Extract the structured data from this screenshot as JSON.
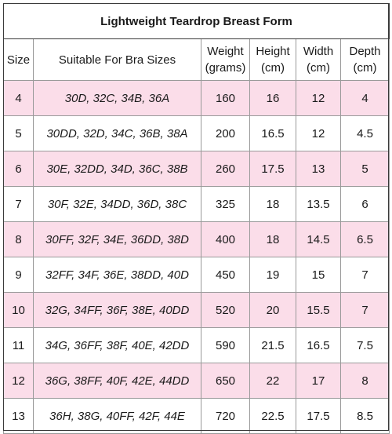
{
  "title": "Lightweight Teardrop Breast Form",
  "columns": {
    "size": [
      "Size"
    ],
    "bra": [
      "Suitable For Bra Sizes"
    ],
    "weight": [
      "Weight",
      "(grams)"
    ],
    "height": [
      "Height",
      "(cm)"
    ],
    "width": [
      "Width",
      "(cm)"
    ],
    "depth": [
      "Depth",
      "(cm)"
    ]
  },
  "rows": [
    {
      "size": "4",
      "bra": "30D, 32C, 34B, 36A",
      "weight": "160",
      "height": "16",
      "width": "12",
      "depth": "4"
    },
    {
      "size": "5",
      "bra": "30DD, 32D, 34C, 36B, 38A",
      "weight": "200",
      "height": "16.5",
      "width": "12",
      "depth": "4.5"
    },
    {
      "size": "6",
      "bra": "30E, 32DD, 34D, 36C, 38B",
      "weight": "260",
      "height": "17.5",
      "width": "13",
      "depth": "5"
    },
    {
      "size": "7",
      "bra": "30F, 32E, 34DD, 36D, 38C",
      "weight": "325",
      "height": "18",
      "width": "13.5",
      "depth": "6"
    },
    {
      "size": "8",
      "bra": "30FF, 32F, 34E, 36DD, 38D",
      "weight": "400",
      "height": "18",
      "width": "14.5",
      "depth": "6.5"
    },
    {
      "size": "9",
      "bra": "32FF, 34F, 36E, 38DD, 40D",
      "weight": "450",
      "height": "19",
      "width": "15",
      "depth": "7"
    },
    {
      "size": "10",
      "bra": "32G, 34FF, 36F, 38E, 40DD",
      "weight": "520",
      "height": "20",
      "width": "15.5",
      "depth": "7"
    },
    {
      "size": "11",
      "bra": "34G, 36FF, 38F, 40E, 42DD",
      "weight": "590",
      "height": "21.5",
      "width": "16.5",
      "depth": "7.5"
    },
    {
      "size": "12",
      "bra": "36G, 38FF, 40F, 42E, 44DD",
      "weight": "650",
      "height": "22",
      "width": "17",
      "depth": "8"
    },
    {
      "size": "13",
      "bra": "36H, 38G, 40FF, 42F, 44E",
      "weight": "720",
      "height": "22.5",
      "width": "17.5",
      "depth": "8.5"
    }
  ],
  "colors": {
    "shade": "#fbdde9",
    "border": "#9a9a9a"
  }
}
